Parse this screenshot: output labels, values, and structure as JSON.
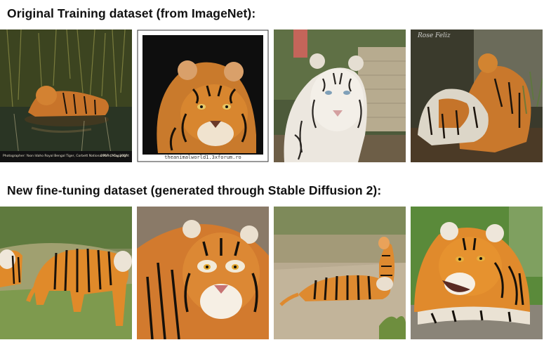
{
  "headings": {
    "original": "Original Training dataset (from ImageNet):",
    "finetune": "New fine-tuning dataset (generated through Stable Diffusion 2):"
  },
  "original_row": {
    "tile1": {
      "credit": "Photographer: Yoon Idaho      Royal Bengal Tiger, Corbett National Park, May 2007",
      "credit_right": "2007 © Copyright"
    },
    "tile2": {
      "caption": "theanimalworld1.3xforum.ro"
    },
    "tile4": {
      "watermark": "Rose Feliz"
    }
  },
  "colors": {
    "tiger_orange": "#d9771f",
    "stripe": "#1a1410",
    "white_fur": "#f1ece2"
  }
}
